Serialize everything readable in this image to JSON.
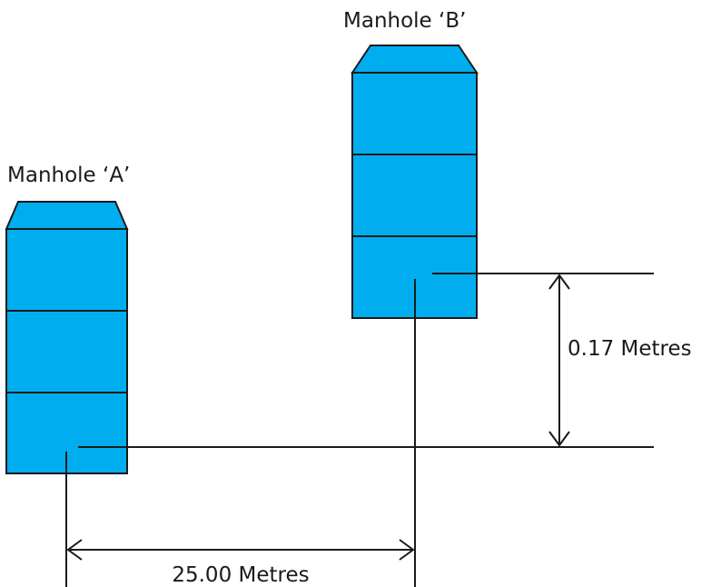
{
  "colors": {
    "manhole_fill": "#00aeef",
    "line": "#1a1a1a"
  },
  "manholes": {
    "a": {
      "label": "Manhole ‘A’"
    },
    "b": {
      "label": "Manhole ‘B’"
    }
  },
  "dimensions": {
    "horizontal_distance": "25.00 Metres",
    "vertical_difference": "0.17 Metres"
  }
}
